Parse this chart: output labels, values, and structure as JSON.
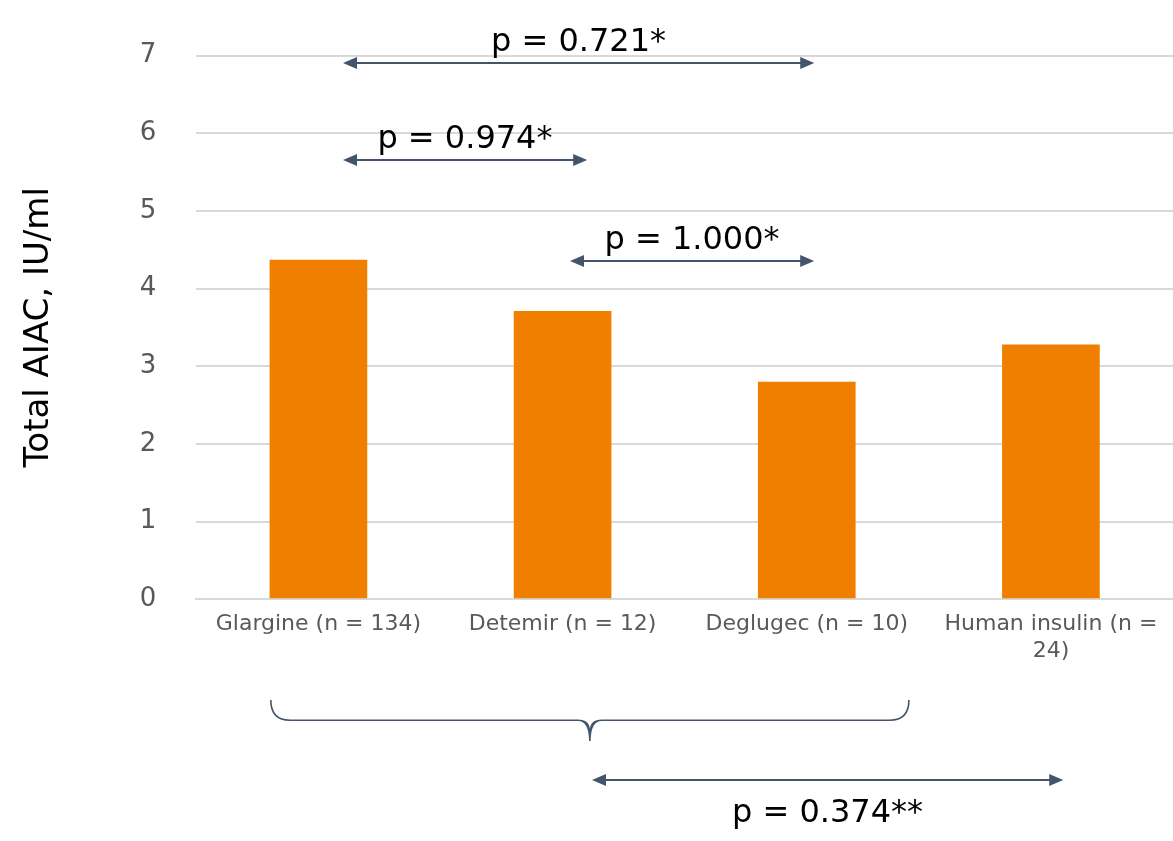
{
  "chart_data": {
    "type": "bar",
    "ylabel": "Total AIAC, IU/ml",
    "categories": [
      "Glargine (n = 134)",
      "Detemir (n = 12)",
      "Deglugec (n = 10)",
      "Human insulin (n = 24)"
    ],
    "values": [
      4.37,
      3.71,
      2.8,
      3.28
    ],
    "color": "#f07f00",
    "ylim": [
      0,
      7
    ],
    "yticks": [
      0,
      1,
      2,
      3,
      4,
      5,
      6,
      7
    ],
    "grid": "y",
    "legend": false,
    "annotations": [
      "p = 0.721*",
      "p = 0.974*",
      "p = 1.000*",
      "p = 0.374**"
    ]
  }
}
